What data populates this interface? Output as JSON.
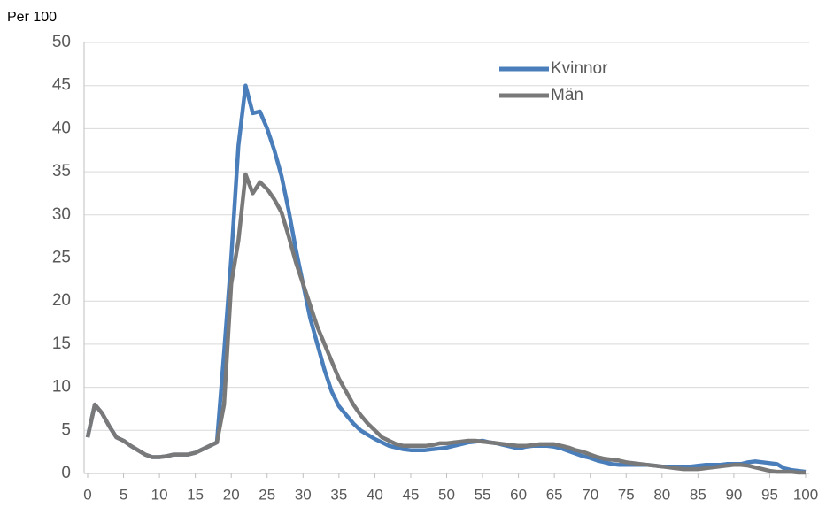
{
  "chart_data": {
    "type": "line",
    "y_label": "Per 100",
    "x": [
      0,
      1,
      2,
      3,
      4,
      5,
      6,
      7,
      8,
      9,
      10,
      11,
      12,
      13,
      14,
      15,
      16,
      17,
      18,
      19,
      20,
      21,
      22,
      23,
      24,
      25,
      26,
      27,
      28,
      29,
      30,
      31,
      32,
      33,
      34,
      35,
      36,
      37,
      38,
      39,
      40,
      41,
      42,
      43,
      44,
      45,
      46,
      47,
      48,
      49,
      50,
      51,
      52,
      53,
      54,
      55,
      56,
      57,
      58,
      59,
      60,
      61,
      62,
      63,
      64,
      65,
      66,
      67,
      68,
      69,
      70,
      71,
      72,
      73,
      74,
      75,
      76,
      77,
      78,
      79,
      80,
      81,
      82,
      83,
      84,
      85,
      86,
      87,
      88,
      89,
      90,
      91,
      92,
      93,
      94,
      95,
      96,
      97,
      98,
      99,
      100
    ],
    "series": [
      {
        "name": "Kvinnor",
        "color": "#4a7ebb",
        "values": [
          4.2,
          8,
          7,
          5.5,
          4.2,
          3.8,
          3.2,
          2.7,
          2.2,
          1.9,
          1.9,
          2,
          2.2,
          2.2,
          2.2,
          2.4,
          2.8,
          3.2,
          3.6,
          14,
          25,
          38,
          45,
          41.8,
          42,
          40,
          37.5,
          34.5,
          30.5,
          26,
          22,
          18,
          15,
          12,
          9.5,
          7.8,
          6.8,
          5.8,
          5,
          4.5,
          4,
          3.6,
          3.2,
          3,
          2.8,
          2.7,
          2.7,
          2.7,
          2.8,
          2.9,
          3,
          3.2,
          3.4,
          3.6,
          3.7,
          3.8,
          3.6,
          3.5,
          3.3,
          3.1,
          2.9,
          3.1,
          3.2,
          3.2,
          3.2,
          3.1,
          2.9,
          2.6,
          2.3,
          2,
          1.8,
          1.5,
          1.3,
          1.1,
          1,
          1,
          1,
          1,
          1,
          0.9,
          0.8,
          0.8,
          0.8,
          0.8,
          0.8,
          0.9,
          1,
          1,
          1,
          1.1,
          1.1,
          1.1,
          1.3,
          1.4,
          1.3,
          1.2,
          1.1,
          0.6,
          0.4,
          0.3,
          0.2
        ]
      },
      {
        "name": "Män",
        "color": "#797979",
        "values": [
          4.2,
          8,
          7,
          5.5,
          4.2,
          3.8,
          3.2,
          2.7,
          2.2,
          1.9,
          1.9,
          2,
          2.2,
          2.2,
          2.2,
          2.4,
          2.8,
          3.2,
          3.6,
          8,
          22,
          27,
          34.7,
          32.5,
          33.8,
          33,
          31.8,
          30.3,
          27.5,
          24.5,
          22,
          19.5,
          17,
          15,
          13,
          11,
          9.5,
          8,
          6.8,
          5.8,
          5,
          4.2,
          3.8,
          3.4,
          3.2,
          3.2,
          3.2,
          3.2,
          3.3,
          3.5,
          3.5,
          3.6,
          3.7,
          3.8,
          3.8,
          3.7,
          3.6,
          3.5,
          3.4,
          3.3,
          3.2,
          3.2,
          3.3,
          3.4,
          3.4,
          3.4,
          3.2,
          3,
          2.7,
          2.5,
          2.2,
          1.9,
          1.7,
          1.6,
          1.5,
          1.3,
          1.2,
          1.1,
          1,
          0.9,
          0.8,
          0.7,
          0.6,
          0.5,
          0.5,
          0.5,
          0.6,
          0.7,
          0.8,
          0.9,
          1,
          1,
          0.9,
          0.7,
          0.5,
          0.3,
          0.2,
          0.2,
          0.2,
          0.1,
          0.1
        ]
      }
    ],
    "xlim": [
      0,
      100
    ],
    "xticks": [
      0,
      5,
      10,
      15,
      20,
      25,
      30,
      35,
      40,
      45,
      50,
      55,
      60,
      65,
      70,
      75,
      80,
      85,
      90,
      95,
      100
    ],
    "ylim": [
      0,
      50
    ],
    "yticks": [
      0,
      5,
      10,
      15,
      20,
      25,
      30,
      35,
      40,
      45,
      50
    ],
    "grid": true,
    "legend": "top-right"
  }
}
